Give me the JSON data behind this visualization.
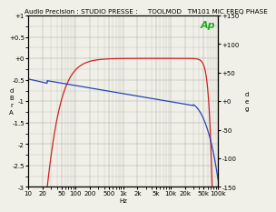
{
  "title": "Audio Precision : STUDIO PRESSE :     TOOLMOD   TM101 MIC FREQ PHASE",
  "xlabel": "Hz",
  "xlim": [
    10,
    100000
  ],
  "xtick_labels": [
    "10",
    "20",
    "50",
    "100",
    "200",
    "500",
    "1k",
    "2k",
    "5k",
    "10k",
    "20k",
    "50k",
    "100k"
  ],
  "xtick_values": [
    10,
    20,
    50,
    100,
    200,
    500,
    1000,
    2000,
    5000,
    10000,
    20000,
    50000,
    100000
  ],
  "ylim_left": [
    -3.0,
    1.0
  ],
  "ytick_left": [
    1.0,
    0.5,
    0.0,
    -0.5,
    -1.0,
    -1.5,
    -2.0,
    -2.5,
    -3.0
  ],
  "ytick_left_labels": [
    "+1",
    "+0.5",
    "+0",
    "-0.5",
    "-1",
    "-1.5",
    "-2",
    "-2.5",
    "-3"
  ],
  "ylim_right": [
    -150,
    150
  ],
  "ytick_right": [
    150,
    100,
    50,
    0,
    -50,
    -100,
    -150
  ],
  "ytick_right_labels": [
    "+150",
    "+100",
    "+50",
    "+0",
    "-50",
    "-100",
    "-150"
  ],
  "red_line_color": "#cc2222",
  "blue_line_color": "#2244bb",
  "grid_color": "#aaaaaa",
  "background_color": "#f0f0e8",
  "ap_color": "#22aa22",
  "title_fontsize": 5.2,
  "tick_fontsize": 5.0,
  "left_ylabel_chars": "d\nB\nr\nA",
  "right_ylabel_chars": "d\ne\ng"
}
